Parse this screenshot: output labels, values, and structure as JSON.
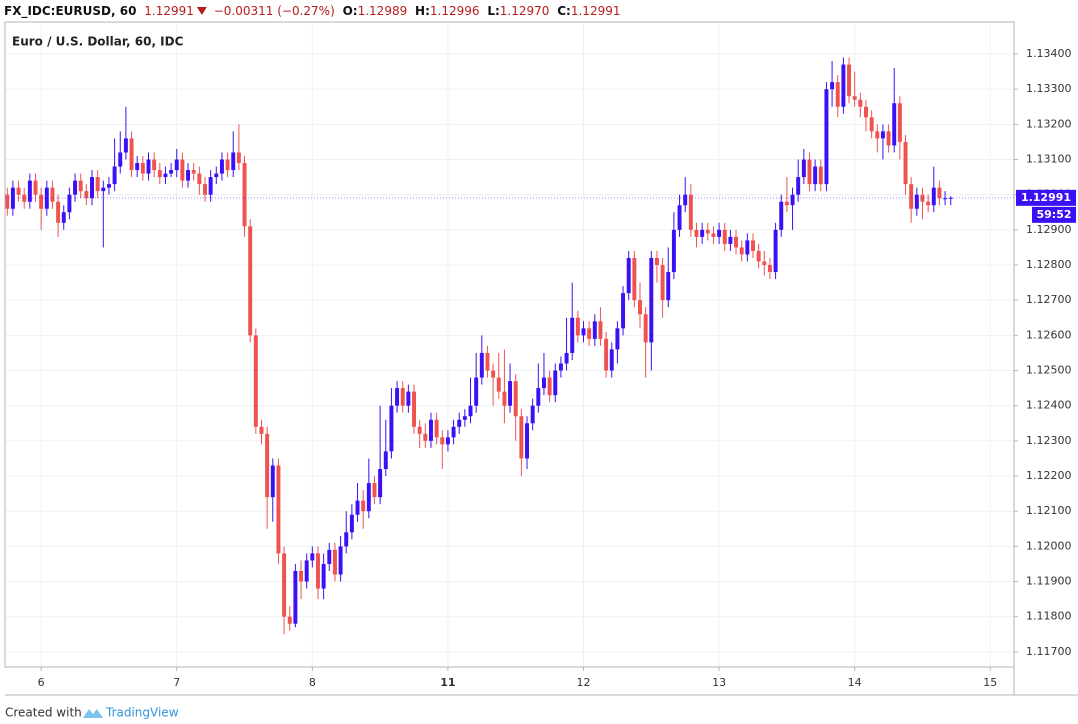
{
  "chart_data": {
    "type": "candlestick",
    "header": {
      "symbol": "FX_IDC:EURUSD, 60",
      "price": "1.12991",
      "change": "−0.00311 (−0.27%)",
      "open_label": "O:",
      "open": "1.12989",
      "high_label": "H:",
      "high": "1.12996",
      "low_label": "L:",
      "low": "1.12970",
      "close_label": "C:",
      "close": "1.12991"
    },
    "title": "Euro / U.S. Dollar, 60, IDC",
    "up_color": "#3b10f5",
    "down_color": "#ef5350",
    "grid": true,
    "last_price": 1.12991,
    "countdown": "59:52",
    "footer": {
      "created": "Created with",
      "brand": "TradingView"
    },
    "xlim": [
      -6.4,
      172.2
    ],
    "xticks": [
      {
        "value": 0,
        "label": "6"
      },
      {
        "value": 24,
        "label": "7"
      },
      {
        "value": 48,
        "label": "8"
      },
      {
        "value": 72,
        "label": "11"
      },
      {
        "value": 96,
        "label": "12"
      },
      {
        "value": 120,
        "label": "13"
      },
      {
        "value": 144,
        "label": "14"
      },
      {
        "value": 168,
        "label": "15"
      }
    ],
    "ylim": [
      1.11657,
      1.13491
    ],
    "yticks": [
      {
        "value": 1.117,
        "label": "1.11700"
      },
      {
        "value": 1.118,
        "label": "1.11800"
      },
      {
        "value": 1.119,
        "label": "1.11900"
      },
      {
        "value": 1.12,
        "label": "1.12000"
      },
      {
        "value": 1.121,
        "label": "1.12100"
      },
      {
        "value": 1.122,
        "label": "1.12200"
      },
      {
        "value": 1.123,
        "label": "1.12300"
      },
      {
        "value": 1.124,
        "label": "1.12400"
      },
      {
        "value": 1.125,
        "label": "1.12500"
      },
      {
        "value": 1.126,
        "label": "1.12600"
      },
      {
        "value": 1.127,
        "label": "1.12700"
      },
      {
        "value": 1.128,
        "label": "1.12800"
      },
      {
        "value": 1.129,
        "label": "1.12900"
      },
      {
        "value": 1.13,
        "label": "1.13000"
      },
      {
        "value": 1.131,
        "label": "1.13100"
      },
      {
        "value": 1.132,
        "label": "1.13200"
      },
      {
        "value": 1.133,
        "label": "1.13300"
      },
      {
        "value": 1.134,
        "label": "1.13400"
      }
    ],
    "x": [
      -6,
      -5,
      -4,
      -3,
      -2,
      -1,
      0,
      1,
      2,
      3,
      4,
      5,
      6,
      7,
      8,
      9,
      10,
      11,
      12,
      13,
      14,
      15,
      16,
      17,
      18,
      19,
      20,
      21,
      22,
      23,
      24,
      25,
      26,
      27,
      28,
      29,
      30,
      31,
      32,
      33,
      34,
      35,
      36,
      37,
      38,
      39,
      40,
      41,
      42,
      43,
      44,
      45,
      46,
      47,
      48,
      49,
      50,
      51,
      52,
      53,
      54,
      55,
      56,
      57,
      58,
      59,
      60,
      61,
      62,
      63,
      64,
      65,
      66,
      67,
      68,
      69,
      70,
      71,
      72,
      73,
      74,
      75,
      76,
      77,
      78,
      79,
      80,
      81,
      82,
      83,
      84,
      85,
      86,
      87,
      88,
      89,
      90,
      91,
      92,
      93,
      94,
      95,
      96,
      97,
      98,
      99,
      100,
      101,
      102,
      103,
      104,
      105,
      106,
      107,
      108,
      109,
      110,
      111,
      112,
      113,
      114,
      115,
      116,
      117,
      118,
      119,
      120,
      121,
      122,
      123,
      124,
      125,
      126,
      127,
      128,
      129,
      130,
      131,
      132,
      133,
      134,
      135,
      136,
      137,
      138,
      139,
      140,
      141,
      142,
      143,
      144,
      145,
      146,
      147,
      148,
      149,
      150,
      151,
      152,
      153,
      154,
      155,
      156,
      157,
      158,
      159,
      160,
      161
    ],
    "ohlc": [
      [
        1.13,
        1.1302,
        1.1294,
        1.1296
      ],
      [
        1.1296,
        1.1304,
        1.1294,
        1.1302
      ],
      [
        1.1302,
        1.1304,
        1.1298,
        1.13
      ],
      [
        1.13,
        1.1302,
        1.1296,
        1.1298
      ],
      [
        1.1298,
        1.1306,
        1.1296,
        1.1304
      ],
      [
        1.1304,
        1.1306,
        1.1298,
        1.13
      ],
      [
        1.13,
        1.1302,
        1.129,
        1.1296
      ],
      [
        1.1296,
        1.1304,
        1.1294,
        1.1302
      ],
      [
        1.1302,
        1.1304,
        1.1296,
        1.1298
      ],
      [
        1.1298,
        1.13,
        1.1288,
        1.1292
      ],
      [
        1.1292,
        1.1297,
        1.129,
        1.1295
      ],
      [
        1.1295,
        1.1302,
        1.1293,
        1.13
      ],
      [
        1.13,
        1.1306,
        1.1298,
        1.1304
      ],
      [
        1.1304,
        1.1306,
        1.1299,
        1.1301
      ],
      [
        1.1301,
        1.1303,
        1.1297,
        1.1299
      ],
      [
        1.1299,
        1.1307,
        1.1297,
        1.1305
      ],
      [
        1.1305,
        1.1307,
        1.1299,
        1.1301
      ],
      [
        1.1301,
        1.1304,
        1.1285,
        1.1302
      ],
      [
        1.1302,
        1.1305,
        1.13,
        1.1303
      ],
      [
        1.1303,
        1.1316,
        1.1301,
        1.1308
      ],
      [
        1.1308,
        1.1318,
        1.1306,
        1.1312
      ],
      [
        1.1312,
        1.1325,
        1.131,
        1.1316
      ],
      [
        1.1316,
        1.1318,
        1.1305,
        1.1307
      ],
      [
        1.1307,
        1.1311,
        1.1305,
        1.1309
      ],
      [
        1.1309,
        1.1311,
        1.1304,
        1.1306
      ],
      [
        1.1306,
        1.1312,
        1.1304,
        1.131
      ],
      [
        1.131,
        1.1312,
        1.1305,
        1.1307
      ],
      [
        1.1307,
        1.1309,
        1.1303,
        1.1305
      ],
      [
        1.1305,
        1.1308,
        1.1303,
        1.1306
      ],
      [
        1.1306,
        1.1309,
        1.1305,
        1.1307
      ],
      [
        1.1307,
        1.1313,
        1.1305,
        1.131
      ],
      [
        1.131,
        1.1312,
        1.1302,
        1.1304
      ],
      [
        1.1304,
        1.1309,
        1.1302,
        1.1307
      ],
      [
        1.1307,
        1.1309,
        1.1304,
        1.1306
      ],
      [
        1.1306,
        1.1308,
        1.13,
        1.1303
      ],
      [
        1.1303,
        1.1305,
        1.1298,
        1.13
      ],
      [
        1.13,
        1.1307,
        1.1298,
        1.1305
      ],
      [
        1.1305,
        1.1308,
        1.1303,
        1.1306
      ],
      [
        1.1306,
        1.1312,
        1.1304,
        1.131
      ],
      [
        1.131,
        1.1312,
        1.1305,
        1.1307
      ],
      [
        1.1307,
        1.1318,
        1.1305,
        1.1312
      ],
      [
        1.1312,
        1.132,
        1.1307,
        1.1309
      ],
      [
        1.1309,
        1.1311,
        1.1288,
        1.1291
      ],
      [
        1.1291,
        1.1293,
        1.1258,
        1.126
      ],
      [
        1.126,
        1.1262,
        1.1232,
        1.1234
      ],
      [
        1.1234,
        1.1236,
        1.1229,
        1.1232
      ],
      [
        1.1232,
        1.1234,
        1.1205,
        1.1214
      ],
      [
        1.1214,
        1.1225,
        1.1207,
        1.1223
      ],
      [
        1.1223,
        1.1225,
        1.1195,
        1.1198
      ],
      [
        1.1198,
        1.12,
        1.1175,
        1.118
      ],
      [
        1.118,
        1.1183,
        1.1176,
        1.1178
      ],
      [
        1.1178,
        1.1195,
        1.1177,
        1.1193
      ],
      [
        1.1193,
        1.1196,
        1.1185,
        1.119
      ],
      [
        1.119,
        1.1198,
        1.1188,
        1.1196
      ],
      [
        1.1196,
        1.12,
        1.1194,
        1.1198
      ],
      [
        1.1198,
        1.12,
        1.1185,
        1.1188
      ],
      [
        1.1188,
        1.1198,
        1.1185,
        1.1195
      ],
      [
        1.1195,
        1.1201,
        1.1193,
        1.1199
      ],
      [
        1.1199,
        1.1201,
        1.119,
        1.1192
      ],
      [
        1.1192,
        1.1203,
        1.119,
        1.12
      ],
      [
        1.12,
        1.121,
        1.1198,
        1.1204
      ],
      [
        1.1204,
        1.1212,
        1.1202,
        1.1209
      ],
      [
        1.1209,
        1.1218,
        1.1207,
        1.1213
      ],
      [
        1.1213,
        1.1216,
        1.1205,
        1.121
      ],
      [
        1.121,
        1.1225,
        1.1208,
        1.1218
      ],
      [
        1.1218,
        1.122,
        1.1212,
        1.1214
      ],
      [
        1.1214,
        1.124,
        1.1212,
        1.1222
      ],
      [
        1.1222,
        1.1236,
        1.122,
        1.1227
      ],
      [
        1.1227,
        1.1245,
        1.1225,
        1.124
      ],
      [
        1.124,
        1.1247,
        1.1238,
        1.1245
      ],
      [
        1.1245,
        1.1247,
        1.1238,
        1.124
      ],
      [
        1.124,
        1.1246,
        1.1238,
        1.1244
      ],
      [
        1.1244,
        1.1246,
        1.1232,
        1.1234
      ],
      [
        1.1234,
        1.1236,
        1.1228,
        1.1232
      ],
      [
        1.1232,
        1.1235,
        1.1228,
        1.123
      ],
      [
        1.123,
        1.1238,
        1.1228,
        1.1236
      ],
      [
        1.1236,
        1.1238,
        1.1229,
        1.1231
      ],
      [
        1.1231,
        1.1233,
        1.1222,
        1.1229
      ],
      [
        1.1229,
        1.1233,
        1.1227,
        1.1231
      ],
      [
        1.1231,
        1.1236,
        1.1229,
        1.1234
      ],
      [
        1.1234,
        1.1238,
        1.1232,
        1.1236
      ],
      [
        1.1236,
        1.1239,
        1.1234,
        1.1237
      ],
      [
        1.1237,
        1.1248,
        1.1235,
        1.124
      ],
      [
        1.124,
        1.1255,
        1.1238,
        1.1248
      ],
      [
        1.1248,
        1.126,
        1.1246,
        1.1255
      ],
      [
        1.1255,
        1.1257,
        1.1248,
        1.125
      ],
      [
        1.125,
        1.1252,
        1.124,
        1.1248
      ],
      [
        1.1248,
        1.1255,
        1.1242,
        1.1244
      ],
      [
        1.1244,
        1.1256,
        1.1235,
        1.124
      ],
      [
        1.124,
        1.1252,
        1.1238,
        1.1247
      ],
      [
        1.1247,
        1.1249,
        1.123,
        1.1237
      ],
      [
        1.1237,
        1.1239,
        1.122,
        1.1225
      ],
      [
        1.1225,
        1.1237,
        1.1222,
        1.1235
      ],
      [
        1.1235,
        1.1242,
        1.1233,
        1.124
      ],
      [
        1.124,
        1.1252,
        1.1238,
        1.1245
      ],
      [
        1.1245,
        1.1255,
        1.1243,
        1.1248
      ],
      [
        1.1248,
        1.125,
        1.1241,
        1.1243
      ],
      [
        1.1243,
        1.1252,
        1.1241,
        1.125
      ],
      [
        1.125,
        1.1254,
        1.1248,
        1.1252
      ],
      [
        1.1252,
        1.1265,
        1.125,
        1.1255
      ],
      [
        1.1255,
        1.1275,
        1.1253,
        1.1265
      ],
      [
        1.1265,
        1.1267,
        1.1258,
        1.126
      ],
      [
        1.126,
        1.1264,
        1.1258,
        1.1262
      ],
      [
        1.1262,
        1.1264,
        1.1257,
        1.1259
      ],
      [
        1.1259,
        1.1266,
        1.1257,
        1.1264
      ],
      [
        1.1264,
        1.1268,
        1.1257,
        1.1259
      ],
      [
        1.1259,
        1.1261,
        1.1248,
        1.125
      ],
      [
        1.125,
        1.1258,
        1.1248,
        1.1256
      ],
      [
        1.1256,
        1.1264,
        1.1252,
        1.1262
      ],
      [
        1.1262,
        1.1274,
        1.126,
        1.1272
      ],
      [
        1.1272,
        1.1284,
        1.127,
        1.1282
      ],
      [
        1.1282,
        1.1284,
        1.1268,
        1.127
      ],
      [
        1.127,
        1.1275,
        1.1262,
        1.1266
      ],
      [
        1.1266,
        1.1268,
        1.1248,
        1.1258
      ],
      [
        1.1258,
        1.1284,
        1.125,
        1.1282
      ],
      [
        1.1282,
        1.1284,
        1.1275,
        1.128
      ],
      [
        1.128,
        1.1282,
        1.1265,
        1.127
      ],
      [
        1.127,
        1.1285,
        1.1268,
        1.1278
      ],
      [
        1.1278,
        1.1295,
        1.1276,
        1.129
      ],
      [
        1.129,
        1.13,
        1.1288,
        1.1297
      ],
      [
        1.1297,
        1.1305,
        1.1295,
        1.13
      ],
      [
        1.13,
        1.1303,
        1.1288,
        1.129
      ],
      [
        1.129,
        1.1292,
        1.1285,
        1.1288
      ],
      [
        1.1288,
        1.1292,
        1.1286,
        1.129
      ],
      [
        1.129,
        1.1292,
        1.1287,
        1.1289
      ],
      [
        1.1289,
        1.1291,
        1.1286,
        1.1288
      ],
      [
        1.1288,
        1.1292,
        1.1286,
        1.129
      ],
      [
        1.129,
        1.1292,
        1.1284,
        1.1286
      ],
      [
        1.1286,
        1.129,
        1.1284,
        1.1288
      ],
      [
        1.1288,
        1.129,
        1.1283,
        1.1285
      ],
      [
        1.1285,
        1.1287,
        1.1281,
        1.1283
      ],
      [
        1.1283,
        1.1289,
        1.1281,
        1.1287
      ],
      [
        1.1287,
        1.1289,
        1.1282,
        1.1284
      ],
      [
        1.1284,
        1.1286,
        1.1279,
        1.1281
      ],
      [
        1.1281,
        1.1284,
        1.1277,
        1.128
      ],
      [
        1.128,
        1.1282,
        1.1276,
        1.1278
      ],
      [
        1.1278,
        1.1292,
        1.1276,
        1.129
      ],
      [
        1.129,
        1.13,
        1.1288,
        1.1298
      ],
      [
        1.1298,
        1.1305,
        1.1295,
        1.1297
      ],
      [
        1.1297,
        1.1302,
        1.129,
        1.13
      ],
      [
        1.13,
        1.131,
        1.1298,
        1.1305
      ],
      [
        1.1305,
        1.1313,
        1.1303,
        1.131
      ],
      [
        1.131,
        1.1312,
        1.1301,
        1.1303
      ],
      [
        1.1303,
        1.131,
        1.1301,
        1.1308
      ],
      [
        1.1308,
        1.131,
        1.1301,
        1.1303
      ],
      [
        1.1303,
        1.1332,
        1.1301,
        1.133
      ],
      [
        1.133,
        1.1338,
        1.1325,
        1.1332
      ],
      [
        1.1332,
        1.1334,
        1.1322,
        1.1325
      ],
      [
        1.1325,
        1.1339,
        1.1323,
        1.1337
      ],
      [
        1.1337,
        1.1339,
        1.1326,
        1.1328
      ],
      [
        1.1328,
        1.1335,
        1.1325,
        1.1327
      ],
      [
        1.1327,
        1.1329,
        1.1322,
        1.1325
      ],
      [
        1.1325,
        1.1327,
        1.1318,
        1.1322
      ],
      [
        1.1322,
        1.1324,
        1.1316,
        1.1318
      ],
      [
        1.1318,
        1.132,
        1.1312,
        1.1316
      ],
      [
        1.1316,
        1.132,
        1.131,
        1.1318
      ],
      [
        1.1318,
        1.132,
        1.1312,
        1.1314
      ],
      [
        1.1314,
        1.1336,
        1.1312,
        1.1326
      ],
      [
        1.1326,
        1.1328,
        1.131,
        1.1315
      ],
      [
        1.1315,
        1.1317,
        1.13,
        1.1303
      ],
      [
        1.1303,
        1.1305,
        1.1292,
        1.1296
      ],
      [
        1.1296,
        1.1302,
        1.1294,
        1.13
      ],
      [
        1.13,
        1.1302,
        1.1293,
        1.1298
      ],
      [
        1.1298,
        1.13,
        1.1295,
        1.1297
      ],
      [
        1.1297,
        1.1308,
        1.1295,
        1.1302
      ],
      [
        1.1302,
        1.1304,
        1.1297,
        1.1299
      ],
      [
        1.1299,
        1.1301,
        1.1297,
        1.1299
      ],
      [
        1.12989,
        1.12996,
        1.1297,
        1.12991
      ]
    ]
  }
}
